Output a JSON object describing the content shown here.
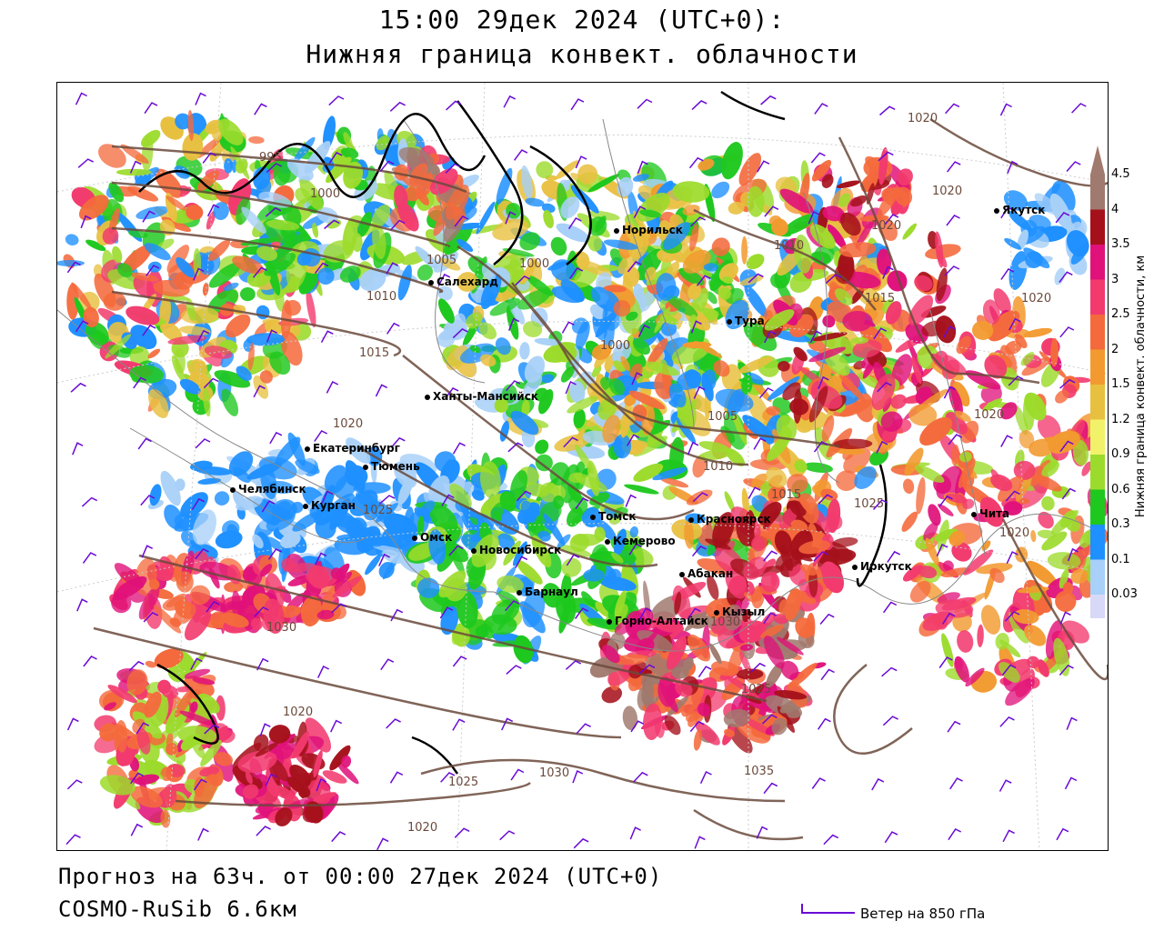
{
  "header": {
    "title_line1": "15:00 29дек 2024 (UTC+0):",
    "title_line2": "Нижняя граница конвект. облачности"
  },
  "footer": {
    "forecast": "Прогноз на 63ч. от 00:00 27дек 2024 (UTC+0)",
    "model": "COSMO-RuSib 6.6км",
    "wind_legend": "Ветер на 850 гПа"
  },
  "colorbar": {
    "title": "Нижняя граница конвект. облачности, км",
    "levels": [
      {
        "label": "4.5",
        "color": "#a07a6e"
      },
      {
        "label": "4",
        "color": "#a5111b"
      },
      {
        "label": "3.5",
        "color": "#e0117a"
      },
      {
        "label": "3",
        "color": "#f23a6e"
      },
      {
        "label": "2.5",
        "color": "#f46a3c"
      },
      {
        "label": "2",
        "color": "#f29a30"
      },
      {
        "label": "1.5",
        "color": "#e8c040"
      },
      {
        "label": "1.2",
        "color": "#f2f26a"
      },
      {
        "label": "0.9",
        "color": "#9cdb2c"
      },
      {
        "label": "0.6",
        "color": "#1ec81e"
      },
      {
        "label": "0.3",
        "color": "#1e90ff"
      },
      {
        "label": "0.1",
        "color": "#a8d0f8"
      },
      {
        "label": "0.03",
        "color": "#d8d8f8"
      }
    ]
  },
  "cities": [
    {
      "name": "Норильск"
    },
    {
      "name": "Якутск"
    },
    {
      "name": "Салехард"
    },
    {
      "name": "Тура"
    },
    {
      "name": "Ханты-Мансийск"
    },
    {
      "name": "Екатеринбург"
    },
    {
      "name": "Тюмень"
    },
    {
      "name": "Челябинск"
    },
    {
      "name": "Курган"
    },
    {
      "name": "Омск"
    },
    {
      "name": "Новосибирск"
    },
    {
      "name": "Томск"
    },
    {
      "name": "Кемерово"
    },
    {
      "name": "Красноярск"
    },
    {
      "name": "Абакан"
    },
    {
      "name": "Барнаул"
    },
    {
      "name": "Горно-Алтайск"
    },
    {
      "name": "Кызыл"
    },
    {
      "name": "Иркутск"
    },
    {
      "name": "Чита"
    }
  ],
  "isobars": [
    "1020",
    "1020",
    "1020",
    "1020",
    "995",
    "1000",
    "1005",
    "1000",
    "1010",
    "1010",
    "1015",
    "1015",
    "1000",
    "1020",
    "1005",
    "1010",
    "1015",
    "1025",
    "1025",
    "1020",
    "1020",
    "1030",
    "1025",
    "1035",
    "1030",
    "1030",
    "1025",
    "1020",
    "1020"
  ]
}
